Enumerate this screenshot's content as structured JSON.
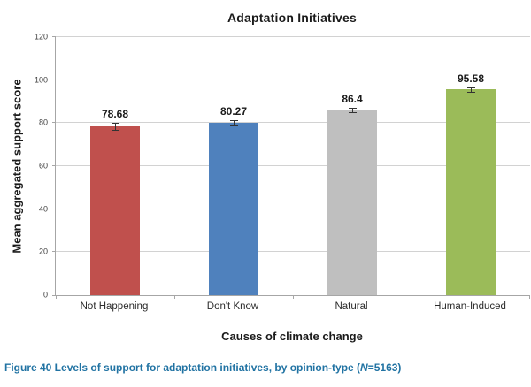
{
  "figure": {
    "title": "Adaptation Initiatives",
    "y_axis_title": "Mean aggregated support score",
    "x_axis_title": "Causes of climate change",
    "caption": {
      "before_n": "Figure 40 Levels of support for adaptation initiatives, by opinion-type (",
      "n_symbol": "N",
      "after_n": "=5163)"
    }
  },
  "chart_data": {
    "type": "bar",
    "title": "Adaptation Initiatives",
    "categories": [
      "Not Happening",
      "Don't Know",
      "Natural",
      "Human-Induced"
    ],
    "values": [
      78.68,
      80.27,
      86.4,
      95.58
    ],
    "value_labels": [
      "78.68",
      "80.27",
      "86.4",
      "95.58"
    ],
    "error_bars": [
      1.5,
      1.0,
      0.6,
      0.5
    ],
    "bar_colors": [
      "#C0504D",
      "#4F81BD",
      "#BFBFBF",
      "#9BBB59"
    ],
    "xlabel": "Causes of climate change",
    "ylabel": "Mean aggregated support score",
    "ylim": [
      0,
      120
    ],
    "yticks": [
      0,
      20,
      40,
      60,
      80,
      100,
      120
    ],
    "grid": true,
    "legend_position": "none",
    "annotation_colors": {
      "error_bar": "#333333",
      "gridline": "#d2d2d2",
      "axis_line": "#a6a6a6",
      "caption_text": "#2173a3"
    }
  }
}
